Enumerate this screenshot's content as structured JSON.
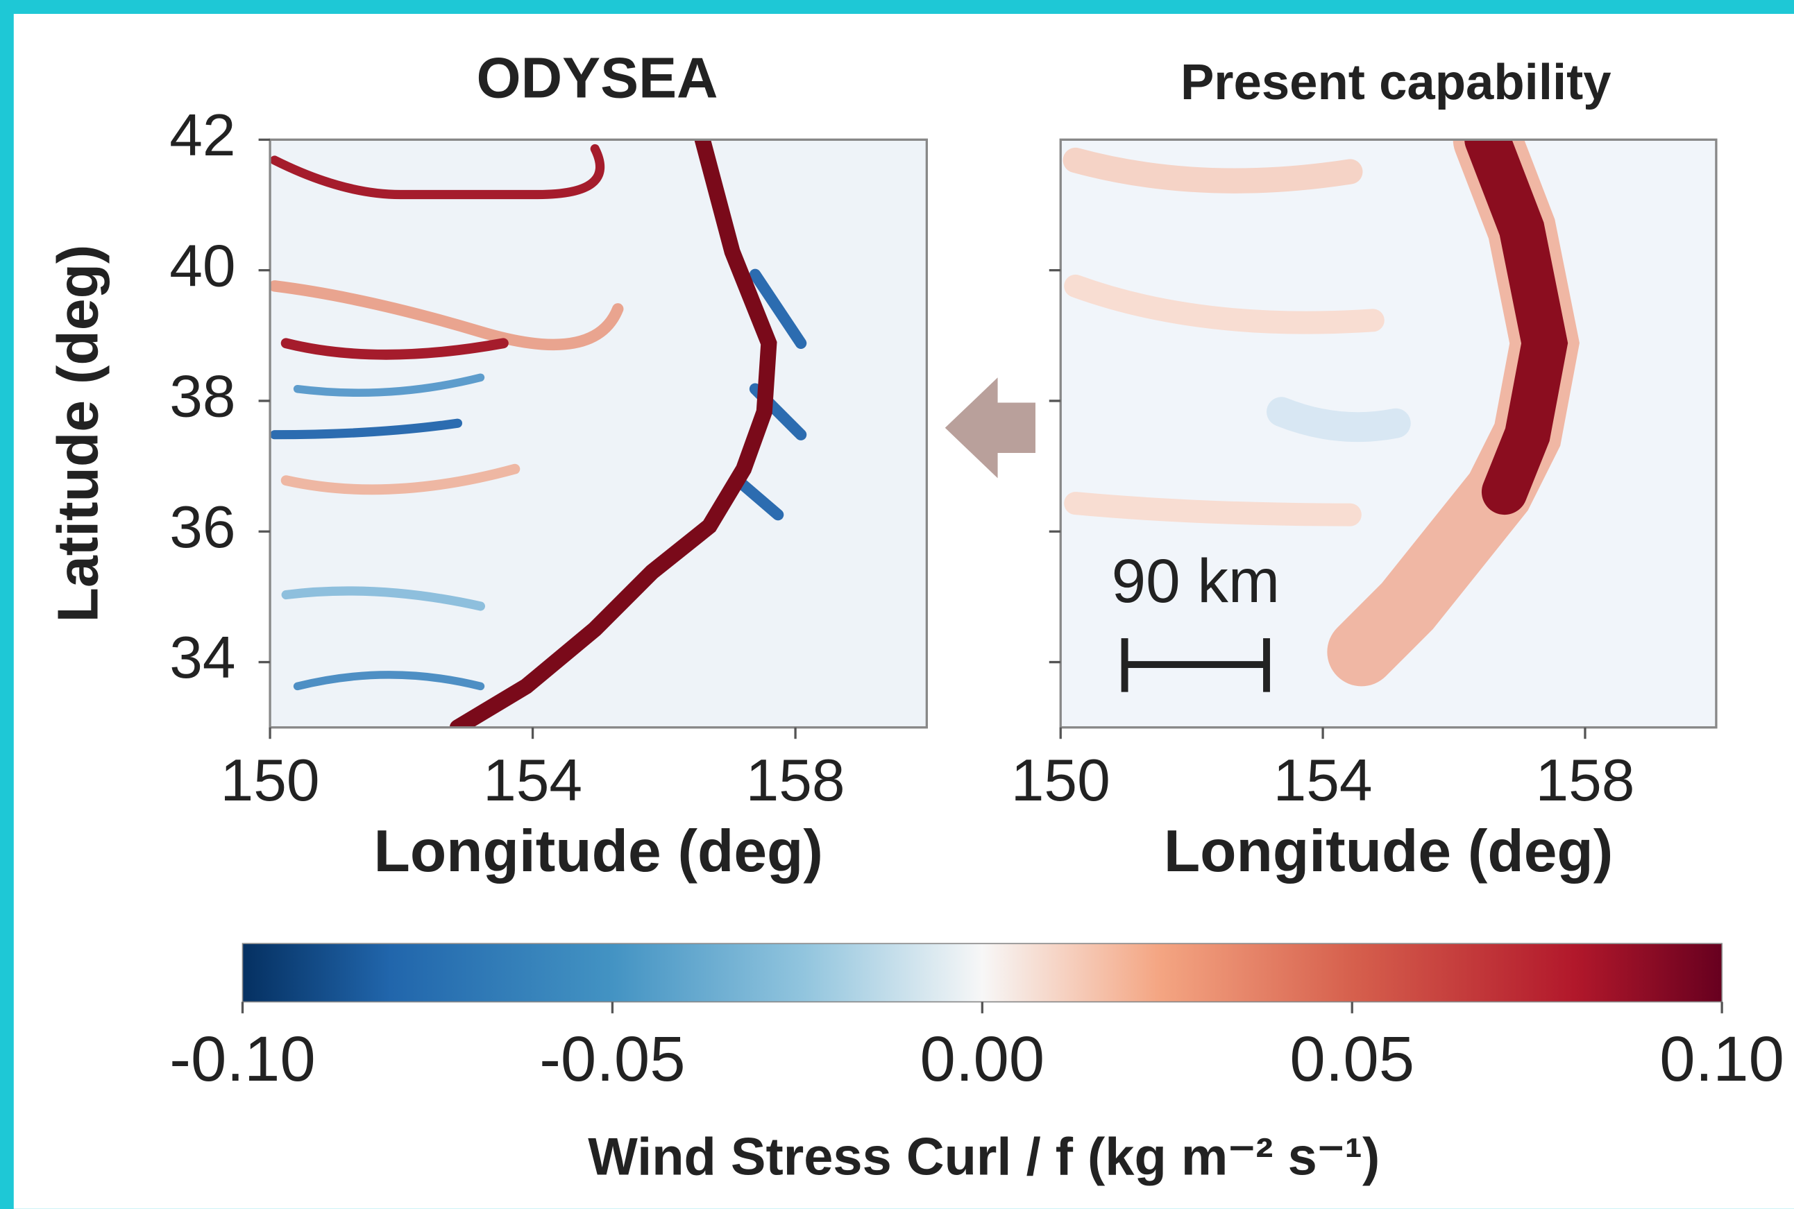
{
  "chart_data": [
    {
      "type": "heatmap",
      "title": "ODYSEA",
      "xlabel": "Longitude (deg)",
      "ylabel": "Latitude (deg)",
      "xlim": [
        150,
        160
      ],
      "ylim": [
        33,
        42
      ],
      "xticks": [
        150,
        154,
        158
      ],
      "yticks": [
        34,
        36,
        38,
        40,
        42
      ]
    },
    {
      "type": "heatmap",
      "title": "Present capability",
      "xlabel": "Longitude (deg)",
      "annotation": "90 km",
      "xlim": [
        150,
        160
      ],
      "ylim": [
        33,
        42
      ],
      "xticks": [
        150,
        154,
        158
      ],
      "yticks": [
        34,
        36,
        38,
        40
      ]
    },
    {
      "type": "colorbar",
      "label": "Wind Stress Curl / f (kg m⁻² s⁻¹)",
      "lim": [
        -0.1,
        0.1
      ],
      "ticks": [
        {
          "value": -0.1,
          "label": "-0.10"
        },
        {
          "value": -0.05,
          "label": "-0.05"
        },
        {
          "value": 0,
          "label": "0.00"
        },
        {
          "value": 0.05,
          "label": "0.05"
        },
        {
          "value": 0.1,
          "label": "0.10"
        }
      ]
    }
  ]
}
